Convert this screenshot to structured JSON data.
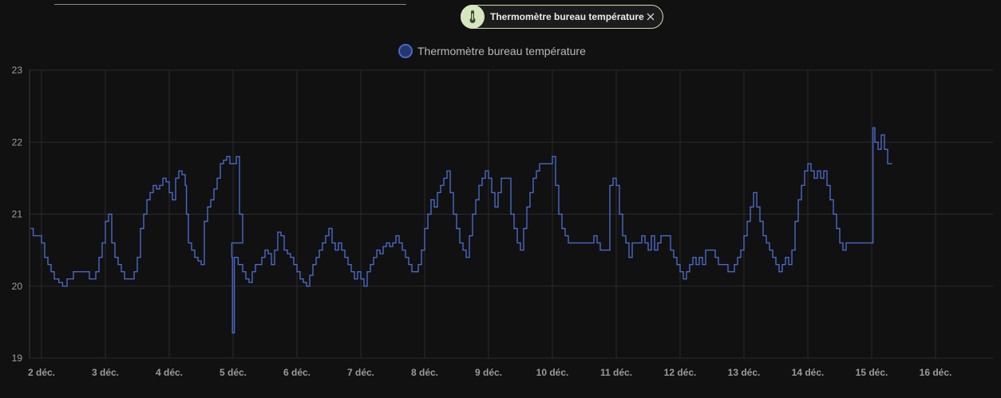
{
  "chip": {
    "label": "Thermomètre bureau température",
    "icon": "thermometer-icon",
    "close_icon": "close-icon"
  },
  "colors": {
    "background": "#111111",
    "line": "#4a69c7",
    "chip_accent": "#d6e7bf",
    "grid": "#2b2b2b"
  },
  "chart_data": {
    "type": "line",
    "title": "",
    "xlabel": "",
    "ylabel": "",
    "ylim": [
      19,
      23
    ],
    "yticks": [
      19,
      20,
      21,
      22,
      23
    ],
    "xticks": [
      {
        "day": 2,
        "label": "2 déc."
      },
      {
        "day": 3,
        "label": "3 déc."
      },
      {
        "day": 4,
        "label": "4 déc."
      },
      {
        "day": 5,
        "label": "5 déc."
      },
      {
        "day": 6,
        "label": "6 déc."
      },
      {
        "day": 7,
        "label": "7 déc."
      },
      {
        "day": 8,
        "label": "8 déc."
      },
      {
        "day": 9,
        "label": "9 déc."
      },
      {
        "day": 10,
        "label": "10 déc."
      },
      {
        "day": 11,
        "label": "11 déc."
      },
      {
        "day": 12,
        "label": "12 déc."
      },
      {
        "day": 13,
        "label": "13 déc."
      },
      {
        "day": 14,
        "label": "14 déc."
      },
      {
        "day": 15,
        "label": "15 déc."
      },
      {
        "day": 16,
        "label": "16 déc."
      }
    ],
    "xlim": [
      1.83,
      16.92
    ],
    "grid": true,
    "legend_position": "top-center",
    "series": [
      {
        "name": "Thermomètre bureau température",
        "step": true,
        "points": [
          [
            1.83,
            20.8
          ],
          [
            1.87,
            20.7
          ],
          [
            2.0,
            20.6
          ],
          [
            2.05,
            20.4
          ],
          [
            2.1,
            20.3
          ],
          [
            2.15,
            20.2
          ],
          [
            2.2,
            20.1
          ],
          [
            2.27,
            20.05
          ],
          [
            2.33,
            20.0
          ],
          [
            2.4,
            20.1
          ],
          [
            2.5,
            20.2
          ],
          [
            2.7,
            20.2
          ],
          [
            2.75,
            20.1
          ],
          [
            2.85,
            20.2
          ],
          [
            2.9,
            20.4
          ],
          [
            2.95,
            20.6
          ],
          [
            3.0,
            20.9
          ],
          [
            3.05,
            21.0
          ],
          [
            3.1,
            20.6
          ],
          [
            3.15,
            20.4
          ],
          [
            3.2,
            20.3
          ],
          [
            3.25,
            20.2
          ],
          [
            3.3,
            20.1
          ],
          [
            3.4,
            20.1
          ],
          [
            3.45,
            20.2
          ],
          [
            3.5,
            20.4
          ],
          [
            3.55,
            20.8
          ],
          [
            3.6,
            21.0
          ],
          [
            3.65,
            21.2
          ],
          [
            3.7,
            21.3
          ],
          [
            3.75,
            21.4
          ],
          [
            3.8,
            21.35
          ],
          [
            3.85,
            21.4
          ],
          [
            3.9,
            21.5
          ],
          [
            3.95,
            21.45
          ],
          [
            4.0,
            21.3
          ],
          [
            4.05,
            21.2
          ],
          [
            4.1,
            21.5
          ],
          [
            4.15,
            21.6
          ],
          [
            4.2,
            21.55
          ],
          [
            4.25,
            21.4
          ],
          [
            4.27,
            21.0
          ],
          [
            4.3,
            20.6
          ],
          [
            4.35,
            20.5
          ],
          [
            4.4,
            20.4
          ],
          [
            4.45,
            20.35
          ],
          [
            4.5,
            20.3
          ],
          [
            4.55,
            20.9
          ],
          [
            4.6,
            21.1
          ],
          [
            4.65,
            21.2
          ],
          [
            4.7,
            21.35
          ],
          [
            4.75,
            21.5
          ],
          [
            4.8,
            21.7
          ],
          [
            4.85,
            21.75
          ],
          [
            4.9,
            21.8
          ],
          [
            4.95,
            21.7
          ],
          [
            5.05,
            21.8
          ],
          [
            5.1,
            21.0
          ],
          [
            5.15,
            20.6
          ],
          [
            4.98,
            20.4
          ],
          [
            4.99,
            19.35
          ],
          [
            5.02,
            20.4
          ],
          [
            5.08,
            20.3
          ],
          [
            5.15,
            20.2
          ],
          [
            5.2,
            20.1
          ],
          [
            5.25,
            20.05
          ],
          [
            5.3,
            20.2
          ],
          [
            5.35,
            20.3
          ],
          [
            5.45,
            20.4
          ],
          [
            5.5,
            20.5
          ],
          [
            5.55,
            20.45
          ],
          [
            5.6,
            20.3
          ],
          [
            5.65,
            20.5
          ],
          [
            5.7,
            20.75
          ],
          [
            5.75,
            20.7
          ],
          [
            5.8,
            20.5
          ],
          [
            5.85,
            20.45
          ],
          [
            5.9,
            20.4
          ],
          [
            5.95,
            20.3
          ],
          [
            6.0,
            20.2
          ],
          [
            6.05,
            20.1
          ],
          [
            6.1,
            20.05
          ],
          [
            6.15,
            20.0
          ],
          [
            6.2,
            20.15
          ],
          [
            6.25,
            20.3
          ],
          [
            6.3,
            20.4
          ],
          [
            6.35,
            20.5
          ],
          [
            6.4,
            20.6
          ],
          [
            6.45,
            20.7
          ],
          [
            6.5,
            20.8
          ],
          [
            6.55,
            20.6
          ],
          [
            6.6,
            20.5
          ],
          [
            6.65,
            20.6
          ],
          [
            6.7,
            20.5
          ],
          [
            6.75,
            20.4
          ],
          [
            6.8,
            20.3
          ],
          [
            6.85,
            20.2
          ],
          [
            6.9,
            20.1
          ],
          [
            6.95,
            20.2
          ],
          [
            7.0,
            20.1
          ],
          [
            7.05,
            20.0
          ],
          [
            7.1,
            20.2
          ],
          [
            7.15,
            20.3
          ],
          [
            7.2,
            20.4
          ],
          [
            7.25,
            20.5
          ],
          [
            7.3,
            20.45
          ],
          [
            7.35,
            20.55
          ],
          [
            7.4,
            20.6
          ],
          [
            7.45,
            20.55
          ],
          [
            7.5,
            20.6
          ],
          [
            7.55,
            20.7
          ],
          [
            7.6,
            20.6
          ],
          [
            7.65,
            20.5
          ],
          [
            7.7,
            20.4
          ],
          [
            7.75,
            20.3
          ],
          [
            7.8,
            20.2
          ],
          [
            7.9,
            20.3
          ],
          [
            7.95,
            20.5
          ],
          [
            8.0,
            20.8
          ],
          [
            8.05,
            21.0
          ],
          [
            8.1,
            21.2
          ],
          [
            8.15,
            21.1
          ],
          [
            8.2,
            21.3
          ],
          [
            8.25,
            21.4
          ],
          [
            8.3,
            21.5
          ],
          [
            8.35,
            21.6
          ],
          [
            8.4,
            21.3
          ],
          [
            8.45,
            21.0
          ],
          [
            8.5,
            20.8
          ],
          [
            8.55,
            20.6
          ],
          [
            8.6,
            20.5
          ],
          [
            8.65,
            20.4
          ],
          [
            8.7,
            20.7
          ],
          [
            8.75,
            21.0
          ],
          [
            8.8,
            21.2
          ],
          [
            8.85,
            21.4
          ],
          [
            8.9,
            21.5
          ],
          [
            8.95,
            21.6
          ],
          [
            9.0,
            21.5
          ],
          [
            9.05,
            21.3
          ],
          [
            9.1,
            21.1
          ],
          [
            9.15,
            21.3
          ],
          [
            9.2,
            21.5
          ],
          [
            9.3,
            21.5
          ],
          [
            9.35,
            21.0
          ],
          [
            9.4,
            20.8
          ],
          [
            9.45,
            20.6
          ],
          [
            9.5,
            20.5
          ],
          [
            9.55,
            20.8
          ],
          [
            9.6,
            21.1
          ],
          [
            9.65,
            21.3
          ],
          [
            9.7,
            21.5
          ],
          [
            9.75,
            21.6
          ],
          [
            9.8,
            21.7
          ],
          [
            9.95,
            21.7
          ],
          [
            10.0,
            21.8
          ],
          [
            10.05,
            21.4
          ],
          [
            10.1,
            21.0
          ],
          [
            10.15,
            20.8
          ],
          [
            10.2,
            20.7
          ],
          [
            10.25,
            20.6
          ],
          [
            10.6,
            20.6
          ],
          [
            10.65,
            20.7
          ],
          [
            10.7,
            20.6
          ],
          [
            10.75,
            20.5
          ],
          [
            10.85,
            20.5
          ],
          [
            10.9,
            21.4
          ],
          [
            10.95,
            21.5
          ],
          [
            11.0,
            21.4
          ],
          [
            11.05,
            21.0
          ],
          [
            11.1,
            20.7
          ],
          [
            11.15,
            20.6
          ],
          [
            11.2,
            20.4
          ],
          [
            11.25,
            20.6
          ],
          [
            11.35,
            20.6
          ],
          [
            11.4,
            20.7
          ],
          [
            11.45,
            20.6
          ],
          [
            11.5,
            20.5
          ],
          [
            11.55,
            20.7
          ],
          [
            11.6,
            20.5
          ],
          [
            11.65,
            20.6
          ],
          [
            11.7,
            20.7
          ],
          [
            11.8,
            20.7
          ],
          [
            11.85,
            20.5
          ],
          [
            11.9,
            20.4
          ],
          [
            11.95,
            20.3
          ],
          [
            12.0,
            20.2
          ],
          [
            12.05,
            20.1
          ],
          [
            12.1,
            20.2
          ],
          [
            12.15,
            20.3
          ],
          [
            12.2,
            20.4
          ],
          [
            12.25,
            20.3
          ],
          [
            12.3,
            20.4
          ],
          [
            12.35,
            20.3
          ],
          [
            12.4,
            20.5
          ],
          [
            12.5,
            20.5
          ],
          [
            12.55,
            20.4
          ],
          [
            12.6,
            20.3
          ],
          [
            12.65,
            20.3
          ],
          [
            12.7,
            20.3
          ],
          [
            12.75,
            20.2
          ],
          [
            12.8,
            20.2
          ],
          [
            12.85,
            20.3
          ],
          [
            12.9,
            20.4
          ],
          [
            12.95,
            20.5
          ],
          [
            13.0,
            20.7
          ],
          [
            13.05,
            20.9
          ],
          [
            13.1,
            21.1
          ],
          [
            13.15,
            21.3
          ],
          [
            13.2,
            21.1
          ],
          [
            13.25,
            20.9
          ],
          [
            13.3,
            20.7
          ],
          [
            13.35,
            20.6
          ],
          [
            13.4,
            20.5
          ],
          [
            13.45,
            20.4
          ],
          [
            13.5,
            20.3
          ],
          [
            13.55,
            20.2
          ],
          [
            13.6,
            20.3
          ],
          [
            13.65,
            20.4
          ],
          [
            13.7,
            20.3
          ],
          [
            13.75,
            20.5
          ],
          [
            13.8,
            20.9
          ],
          [
            13.85,
            21.2
          ],
          [
            13.9,
            21.4
          ],
          [
            13.95,
            21.6
          ],
          [
            14.0,
            21.7
          ],
          [
            14.05,
            21.6
          ],
          [
            14.1,
            21.5
          ],
          [
            14.15,
            21.6
          ],
          [
            14.2,
            21.5
          ],
          [
            14.25,
            21.6
          ],
          [
            14.3,
            21.4
          ],
          [
            14.35,
            21.2
          ],
          [
            14.4,
            21.0
          ],
          [
            14.45,
            20.8
          ],
          [
            14.5,
            20.6
          ],
          [
            14.55,
            20.5
          ],
          [
            14.6,
            20.6
          ],
          [
            15.0,
            20.6
          ],
          [
            15.02,
            22.2
          ],
          [
            15.05,
            22.0
          ],
          [
            15.1,
            21.9
          ],
          [
            15.15,
            22.1
          ],
          [
            15.2,
            21.9
          ],
          [
            15.25,
            21.7
          ],
          [
            15.32,
            21.7
          ]
        ]
      }
    ]
  }
}
